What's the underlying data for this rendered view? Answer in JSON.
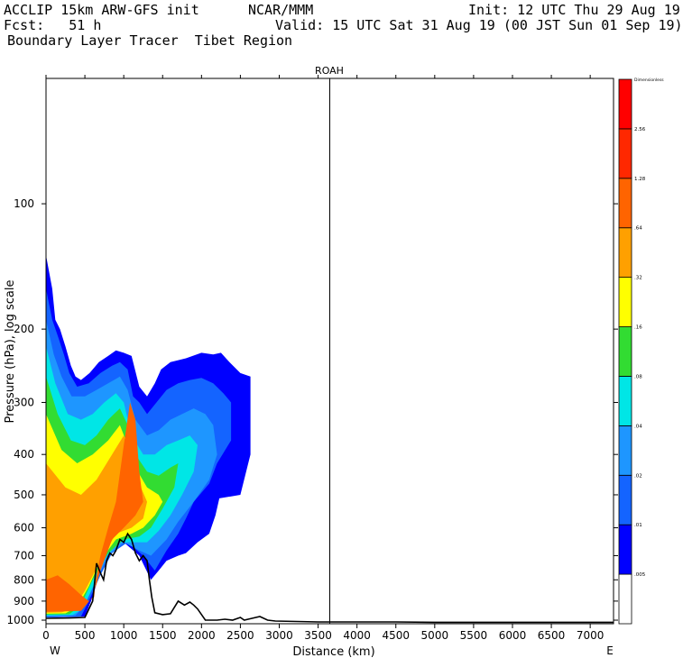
{
  "header": {
    "line1_left": "ACCLIP 15km ARW-GFS init",
    "line1_mid": "NCAR/MMM",
    "line1_right": "Init: 12 UTC Thu 29 Aug 19",
    "line2_left": "Fcst:   51 h",
    "line2_right": "Valid: 15 UTC Sat 31 Aug 19 (00 JST Sun 01 Sep 19)",
    "line3_left": "Boundary Layer Tracer  Tibet Region"
  },
  "chart_data": {
    "type": "heatmap",
    "title": "ROAH",
    "xlabel": "Distance (km)",
    "ylabel": "Pressure (hPa), log scale",
    "x_ticks": [
      "0",
      "500",
      "1000",
      "1500",
      "2000",
      "2500",
      "3000",
      "3500",
      "4000",
      "4500",
      "5000",
      "5500",
      "6000",
      "6500",
      "7000"
    ],
    "y_ticks": [
      "100",
      "200",
      "300",
      "400",
      "500",
      "600",
      "700",
      "800",
      "900",
      "1000"
    ],
    "y_scale": "log",
    "xlim": [
      0,
      7300
    ],
    "ylim_hpa": [
      1020,
      50
    ],
    "left_end_label": "W",
    "right_end_label": "E",
    "vertical_marker_km": 3650,
    "colorbar": {
      "levels": [
        "",
        ".005",
        ".01",
        ".02",
        ".04",
        ".08",
        ".16",
        ".32",
        ".64",
        "1.28",
        "2.56",
        "Dimensionless"
      ],
      "colors": [
        "#ffffff",
        "#0000ff",
        "#1464ff",
        "#1e96ff",
        "#00e6e6",
        "#32dc32",
        "#ffff00",
        "#ffa000",
        "#ff6400",
        "#ff2800",
        "#ff0000"
      ]
    },
    "terrain_profile": [
      [
        0,
        990
      ],
      [
        300,
        988
      ],
      [
        500,
        985
      ],
      [
        600,
        900
      ],
      [
        650,
        730
      ],
      [
        700,
        770
      ],
      [
        740,
        800
      ],
      [
        780,
        720
      ],
      [
        820,
        690
      ],
      [
        860,
        700
      ],
      [
        900,
        680
      ],
      [
        950,
        640
      ],
      [
        1000,
        650
      ],
      [
        1050,
        620
      ],
      [
        1100,
        640
      ],
      [
        1150,
        690
      ],
      [
        1200,
        720
      ],
      [
        1250,
        700
      ],
      [
        1300,
        720
      ],
      [
        1330,
        800
      ],
      [
        1360,
        880
      ],
      [
        1400,
        960
      ],
      [
        1500,
        970
      ],
      [
        1600,
        965
      ],
      [
        1700,
        900
      ],
      [
        1780,
        920
      ],
      [
        1850,
        905
      ],
      [
        1900,
        920
      ],
      [
        1950,
        940
      ],
      [
        2050,
        1000
      ],
      [
        2200,
        1000
      ],
      [
        2300,
        995
      ],
      [
        2400,
        1000
      ],
      [
        2500,
        985
      ],
      [
        2550,
        1000
      ],
      [
        2650,
        990
      ],
      [
        2750,
        980
      ],
      [
        2850,
        1000
      ],
      [
        2950,
        1005
      ],
      [
        3500,
        1010
      ],
      [
        4500,
        1010
      ],
      [
        5000,
        1012
      ],
      [
        7300,
        1012
      ]
    ],
    "tracer_contours": [
      {
        "level": ".005",
        "polygon": [
          [
            0,
            985
          ],
          [
            0,
            133
          ],
          [
            80,
            160
          ],
          [
            120,
            190
          ],
          [
            180,
            200
          ],
          [
            250,
            220
          ],
          [
            320,
            245
          ],
          [
            380,
            260
          ],
          [
            450,
            265
          ],
          [
            560,
            255
          ],
          [
            680,
            240
          ],
          [
            800,
            232
          ],
          [
            900,
            225
          ],
          [
            1000,
            228
          ],
          [
            1100,
            232
          ],
          [
            1200,
            275
          ],
          [
            1300,
            290
          ],
          [
            1400,
            270
          ],
          [
            1480,
            250
          ],
          [
            1600,
            240
          ],
          [
            1800,
            235
          ],
          [
            2000,
            228
          ],
          [
            2150,
            230
          ],
          [
            2250,
            228
          ],
          [
            2360,
            240
          ],
          [
            2500,
            255
          ],
          [
            2630,
            260
          ],
          [
            2630,
            400
          ],
          [
            2500,
            500
          ],
          [
            2230,
            510
          ],
          [
            2180,
            560
          ],
          [
            2100,
            620
          ],
          [
            1950,
            650
          ],
          [
            1800,
            690
          ],
          [
            1700,
            700
          ],
          [
            1550,
            720
          ],
          [
            1450,
            760
          ],
          [
            1350,
            800
          ],
          [
            1200,
            700
          ],
          [
            1000,
            650
          ],
          [
            850,
            690
          ],
          [
            700,
            760
          ],
          [
            600,
            880
          ],
          [
            500,
            980
          ]
        ]
      },
      {
        "level": ".01",
        "polygon": [
          [
            0,
            985
          ],
          [
            0,
            160
          ],
          [
            80,
            190
          ],
          [
            160,
            210
          ],
          [
            230,
            230
          ],
          [
            300,
            255
          ],
          [
            400,
            275
          ],
          [
            550,
            270
          ],
          [
            700,
            255
          ],
          [
            850,
            245
          ],
          [
            950,
            240
          ],
          [
            1050,
            250
          ],
          [
            1120,
            290
          ],
          [
            1200,
            300
          ],
          [
            1300,
            320
          ],
          [
            1420,
            300
          ],
          [
            1550,
            280
          ],
          [
            1700,
            270
          ],
          [
            1850,
            265
          ],
          [
            2000,
            262
          ],
          [
            2150,
            270
          ],
          [
            2280,
            285
          ],
          [
            2380,
            300
          ],
          [
            2380,
            370
          ],
          [
            2200,
            420
          ],
          [
            2100,
            470
          ],
          [
            1900,
            520
          ],
          [
            1800,
            570
          ],
          [
            1700,
            620
          ],
          [
            1550,
            680
          ],
          [
            1400,
            760
          ],
          [
            1250,
            700
          ],
          [
            1050,
            650
          ],
          [
            850,
            690
          ],
          [
            700,
            780
          ],
          [
            550,
            900
          ],
          [
            450,
            980
          ]
        ]
      },
      {
        "level": ".02",
        "polygon": [
          [
            0,
            980
          ],
          [
            0,
            190
          ],
          [
            100,
            230
          ],
          [
            200,
            260
          ],
          [
            330,
            290
          ],
          [
            500,
            290
          ],
          [
            650,
            280
          ],
          [
            800,
            270
          ],
          [
            950,
            260
          ],
          [
            1050,
            280
          ],
          [
            1150,
            330
          ],
          [
            1300,
            360
          ],
          [
            1450,
            350
          ],
          [
            1600,
            330
          ],
          [
            1750,
            320
          ],
          [
            1900,
            310
          ],
          [
            2050,
            320
          ],
          [
            2150,
            340
          ],
          [
            2200,
            400
          ],
          [
            2100,
            460
          ],
          [
            1900,
            520
          ],
          [
            1700,
            580
          ],
          [
            1550,
            640
          ],
          [
            1350,
            700
          ],
          [
            1200,
            680
          ],
          [
            1000,
            650
          ],
          [
            800,
            700
          ],
          [
            650,
            800
          ],
          [
            500,
            920
          ],
          [
            380,
            975
          ]
        ]
      },
      {
        "level": ".04",
        "polygon": [
          [
            0,
            975
          ],
          [
            0,
            220
          ],
          [
            120,
            270
          ],
          [
            280,
            320
          ],
          [
            450,
            330
          ],
          [
            600,
            320
          ],
          [
            750,
            300
          ],
          [
            900,
            285
          ],
          [
            1000,
            300
          ],
          [
            1100,
            360
          ],
          [
            1250,
            400
          ],
          [
            1400,
            400
          ],
          [
            1550,
            380
          ],
          [
            1700,
            370
          ],
          [
            1850,
            360
          ],
          [
            1950,
            380
          ],
          [
            1900,
            440
          ],
          [
            1750,
            500
          ],
          [
            1600,
            560
          ],
          [
            1450,
            610
          ],
          [
            1300,
            650
          ],
          [
            1150,
            650
          ],
          [
            950,
            650
          ],
          [
            780,
            700
          ],
          [
            620,
            820
          ],
          [
            470,
            940
          ],
          [
            340,
            972
          ]
        ]
      },
      {
        "level": ".08",
        "polygon": [
          [
            0,
            970
          ],
          [
            0,
            260
          ],
          [
            150,
            320
          ],
          [
            320,
            370
          ],
          [
            500,
            380
          ],
          [
            650,
            360
          ],
          [
            800,
            330
          ],
          [
            950,
            310
          ],
          [
            1050,
            340
          ],
          [
            1150,
            400
          ],
          [
            1300,
            440
          ],
          [
            1450,
            450
          ],
          [
            1600,
            430
          ],
          [
            1700,
            420
          ],
          [
            1650,
            480
          ],
          [
            1500,
            540
          ],
          [
            1350,
            600
          ],
          [
            1200,
            630
          ],
          [
            1000,
            640
          ],
          [
            800,
            690
          ],
          [
            600,
            800
          ],
          [
            450,
            920
          ],
          [
            300,
            968
          ]
        ]
      },
      {
        "level": ".16",
        "polygon": [
          [
            0,
            965
          ],
          [
            0,
            320
          ],
          [
            200,
            390
          ],
          [
            400,
            420
          ],
          [
            600,
            400
          ],
          [
            800,
            370
          ],
          [
            950,
            340
          ],
          [
            1050,
            380
          ],
          [
            1150,
            430
          ],
          [
            1300,
            480
          ],
          [
            1450,
            500
          ],
          [
            1500,
            520
          ],
          [
            1400,
            560
          ],
          [
            1250,
            600
          ],
          [
            1100,
            620
          ],
          [
            900,
            640
          ],
          [
            700,
            720
          ],
          [
            550,
            830
          ],
          [
            400,
            930
          ],
          [
            250,
            963
          ]
        ]
      },
      {
        "level": ".32",
        "polygon": [
          [
            0,
            960
          ],
          [
            0,
            420
          ],
          [
            250,
            480
          ],
          [
            450,
            500
          ],
          [
            650,
            460
          ],
          [
            850,
            400
          ],
          [
            1000,
            360
          ],
          [
            1100,
            420
          ],
          [
            1200,
            470
          ],
          [
            1300,
            520
          ],
          [
            1250,
            570
          ],
          [
            1100,
            600
          ],
          [
            900,
            620
          ],
          [
            700,
            720
          ],
          [
            500,
            850
          ],
          [
            350,
            940
          ],
          [
            200,
            958
          ]
        ]
      },
      {
        "level": ".64",
        "polygon": [
          [
            0,
            955
          ],
          [
            0,
            800
          ],
          [
            150,
            780
          ],
          [
            300,
            820
          ],
          [
            450,
            870
          ],
          [
            550,
            900
          ],
          [
            620,
            880
          ],
          [
            640,
            800
          ],
          [
            700,
            700
          ],
          [
            800,
            600
          ],
          [
            900,
            520
          ],
          [
            1000,
            380
          ],
          [
            1080,
            300
          ],
          [
            1150,
            330
          ],
          [
            1200,
            440
          ],
          [
            1250,
            520
          ],
          [
            1150,
            560
          ],
          [
            1000,
            600
          ],
          [
            850,
            640
          ],
          [
            700,
            760
          ],
          [
            600,
            880
          ],
          [
            450,
            950
          ],
          [
            200,
            953
          ]
        ]
      }
    ]
  }
}
